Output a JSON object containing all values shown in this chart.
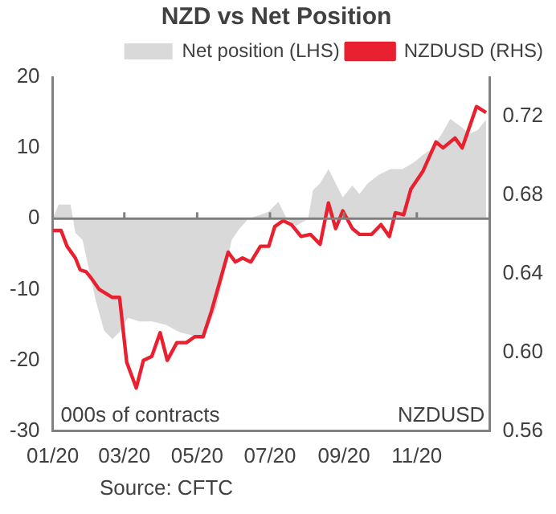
{
  "chart_data": {
    "type": "line",
    "title": "NZD vs Net Position",
    "series": [
      {
        "name": "Net position (LHS)",
        "type": "area",
        "color": "#d9d9d9",
        "x": [
          "2020-01-01",
          "2020-01-06",
          "2020-01-16",
          "2020-01-20",
          "2020-01-26",
          "2020-02-06",
          "2020-02-13",
          "2020-02-20",
          "2020-02-26",
          "2020-03-04",
          "2020-03-14",
          "2020-03-24",
          "2020-04-05",
          "2020-04-16",
          "2020-04-27",
          "2020-05-06",
          "2020-05-17",
          "2020-05-26",
          "2020-05-30",
          "2020-06-05",
          "2020-06-13",
          "2020-06-22",
          "2020-06-30",
          "2020-07-08",
          "2020-07-15",
          "2020-07-23",
          "2020-08-02",
          "2020-08-06",
          "2020-08-12",
          "2020-08-19",
          "2020-08-25",
          "2020-08-31",
          "2020-09-08",
          "2020-09-14",
          "2020-09-21",
          "2020-09-30",
          "2020-10-10",
          "2020-10-20",
          "2020-10-30",
          "2020-11-06",
          "2020-11-13",
          "2020-11-22",
          "2020-11-29",
          "2020-12-08",
          "2020-12-15",
          "2020-12-22",
          "2020-12-29"
        ],
        "values": [
          0,
          2,
          2,
          -2,
          -3,
          -11.5,
          -15.8,
          -17,
          -16,
          -14,
          -14.5,
          -14.5,
          -15,
          -16,
          -16.5,
          -17,
          -12.6,
          -6,
          -3,
          -1.5,
          0,
          0.5,
          1,
          2.4,
          0,
          -1,
          0,
          4,
          5,
          7,
          5,
          3,
          4.7,
          3.5,
          5,
          6.2,
          7,
          7,
          8,
          9,
          9.8,
          12,
          14.1,
          13,
          12,
          12.5,
          14
        ]
      },
      {
        "name": "NZDUSD (RHS)",
        "type": "line",
        "axis": "y2",
        "color": "#e8202f",
        "x": [
          "2020-01-01",
          "2020-01-08",
          "2020-01-13",
          "2020-01-20",
          "2020-01-24",
          "2020-01-29",
          "2020-02-02",
          "2020-02-09",
          "2020-02-20",
          "2020-02-26",
          "2020-03-03",
          "2020-03-11",
          "2020-03-17",
          "2020-03-24",
          "2020-03-31",
          "2020-04-06",
          "2020-04-14",
          "2020-04-22",
          "2020-04-29",
          "2020-05-06",
          "2020-05-13",
          "2020-05-27",
          "2020-06-02",
          "2020-06-08",
          "2020-06-15",
          "2020-06-23",
          "2020-06-30",
          "2020-07-05",
          "2020-07-12",
          "2020-07-19",
          "2020-07-27",
          "2020-08-04",
          "2020-08-12",
          "2020-08-19",
          "2020-08-25",
          "2020-08-31",
          "2020-09-08",
          "2020-09-14",
          "2020-09-24",
          "2020-10-02",
          "2020-10-09",
          "2020-10-14",
          "2020-10-21",
          "2020-10-27",
          "2020-11-06",
          "2020-11-17",
          "2020-11-23",
          "2020-12-03",
          "2020-12-09",
          "2020-12-21",
          "2020-12-29"
        ],
        "values": [
          0.662,
          0.662,
          0.654,
          0.648,
          0.642,
          0.641,
          0.638,
          0.632,
          0.628,
          0.628,
          0.595,
          0.582,
          0.596,
          0.598,
          0.61,
          0.596,
          0.605,
          0.605,
          0.608,
          0.608,
          0.621,
          0.651,
          0.646,
          0.648,
          0.646,
          0.654,
          0.654,
          0.664,
          0.667,
          0.665,
          0.659,
          0.66,
          0.655,
          0.676,
          0.663,
          0.672,
          0.663,
          0.66,
          0.66,
          0.665,
          0.659,
          0.671,
          0.67,
          0.683,
          0.692,
          0.707,
          0.704,
          0.709,
          0.704,
          0.725,
          0.722
        ]
      }
    ],
    "xlim": [
      "2020-01-01",
      "2021-01-01"
    ],
    "xticks": [
      {
        "value": "2020-01-01",
        "label": "01/20"
      },
      {
        "value": "2020-03-01",
        "label": "03/20"
      },
      {
        "value": "2020-05-01",
        "label": "05/20"
      },
      {
        "value": "2020-07-01",
        "label": "07/20"
      },
      {
        "value": "2020-09-01",
        "label": "09/20"
      },
      {
        "value": "2020-11-01",
        "label": "11/20"
      },
      {
        "value": "2021-01-01",
        "label": null
      }
    ],
    "ylim": [
      -30,
      20
    ],
    "yticks": [
      -30,
      -20,
      -10,
      0,
      10,
      20
    ],
    "y2lim": [
      0.56,
      0.74
    ],
    "y2ticks": [
      0.56,
      {
        "value": 0.6,
        "label": "0.60"
      },
      0.64,
      0.68,
      0.72
    ],
    "ref_lines": [
      {
        "axis": "y",
        "value": 0,
        "color": "#7f7f7f"
      }
    ],
    "annotations": [
      "000s of contracts",
      "NZDUSD",
      "Source: CFTC"
    ],
    "legend": "top right",
    "grid": false,
    "marker": "none",
    "line_style": "solid"
  }
}
